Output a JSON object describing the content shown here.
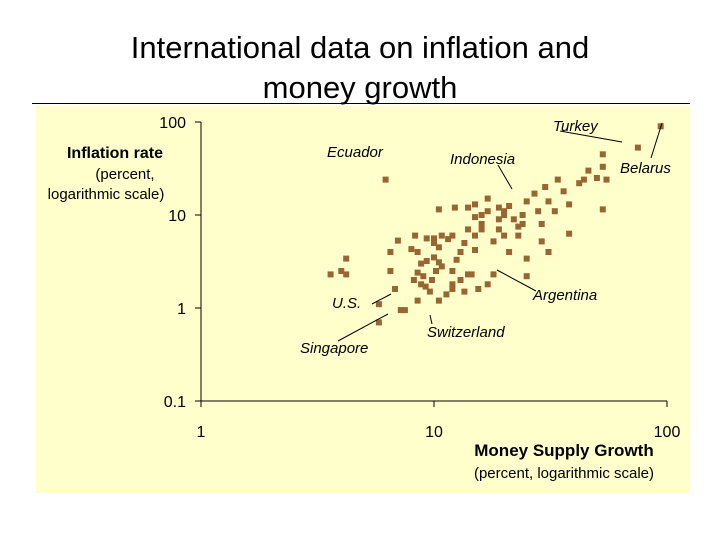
{
  "slide": {
    "title_line1": "International data on inflation and",
    "title_line2": "money growth"
  },
  "colors": {
    "panel_background": "#ffffcc",
    "marker": "#996633",
    "axis": "#000000"
  },
  "chart_data": {
    "type": "scatter",
    "xscale": "log",
    "yscale": "log",
    "xlim": [
      1,
      100
    ],
    "ylim": [
      0.1,
      100
    ],
    "x_ticks": [
      "1",
      "10",
      "100"
    ],
    "y_ticks": [
      "100",
      "10",
      "1",
      "0.1"
    ],
    "xlabel": "Money Supply Growth",
    "xlabel_sub": "(percent, logarithmic scale)",
    "ylabel": "Inflation rate",
    "ylabel_sub_line1": "(percent,",
    "ylabel_sub_line2": "logarithmic scale)",
    "grid": false,
    "points": [
      [
        94,
        90
      ],
      [
        75,
        53
      ],
      [
        53,
        45
      ],
      [
        53,
        33
      ],
      [
        46,
        30
      ],
      [
        50,
        25
      ],
      [
        55,
        24
      ],
      [
        44,
        24
      ],
      [
        42,
        22
      ],
      [
        53,
        11.5
      ],
      [
        34,
        24
      ],
      [
        30,
        20
      ],
      [
        36,
        18
      ],
      [
        38,
        13
      ],
      [
        38,
        6.3
      ],
      [
        27,
        17
      ],
      [
        25,
        14
      ],
      [
        31,
        14
      ],
      [
        33,
        11
      ],
      [
        28,
        11
      ],
      [
        29,
        8
      ],
      [
        29,
        5.2
      ],
      [
        31,
        4
      ],
      [
        24,
        10
      ],
      [
        24,
        8
      ],
      [
        23,
        6
      ],
      [
        22,
        9
      ],
      [
        21,
        12.5
      ],
      [
        20,
        11
      ],
      [
        19,
        9
      ],
      [
        19,
        7
      ],
      [
        18,
        5.2
      ],
      [
        20,
        10
      ],
      [
        17,
        11
      ],
      [
        16,
        10
      ],
      [
        15,
        9.5
      ],
      [
        14,
        12
      ],
      [
        12.3,
        12
      ],
      [
        16,
        8
      ],
      [
        14,
        7
      ],
      [
        15,
        6
      ],
      [
        13.5,
        5
      ],
      [
        12,
        6
      ],
      [
        13,
        4
      ],
      [
        11.5,
        5.5
      ],
      [
        12.5,
        3.3
      ],
      [
        12,
        2.5
      ],
      [
        13,
        2
      ],
      [
        12,
        1.8
      ],
      [
        11.3,
        1.4
      ],
      [
        10.8,
        2.8
      ],
      [
        10.5,
        3.1
      ],
      [
        10,
        3.5
      ],
      [
        10.2,
        2.5
      ],
      [
        9.8,
        2
      ],
      [
        9.6,
        1.5
      ],
      [
        9.3,
        3.2
      ],
      [
        9,
        2.2
      ],
      [
        9.2,
        1.7
      ],
      [
        8.8,
        3
      ],
      [
        8.5,
        4
      ],
      [
        8.3,
        6
      ],
      [
        8.5,
        2.4
      ],
      [
        8.2,
        2
      ],
      [
        8,
        4.3
      ],
      [
        7,
        5.3
      ],
      [
        6.5,
        4
      ],
      [
        6.5,
        2.5
      ],
      [
        10.8,
        6
      ],
      [
        10,
        5
      ],
      [
        10.5,
        4.5
      ],
      [
        10.5,
        1.2
      ],
      [
        10.5,
        11.5
      ],
      [
        10,
        5.6
      ],
      [
        9.3,
        5.6
      ],
      [
        8.8,
        1.8
      ],
      [
        8.5,
        1.2
      ],
      [
        7.5,
        0.95
      ],
      [
        6.8,
        1.6
      ],
      [
        5.8,
        1.1
      ],
      [
        5.8,
        0.7
      ],
      [
        4.2,
        3.4
      ],
      [
        3.6,
        2.3
      ],
      [
        4,
        2.5
      ],
      [
        4.2,
        2.3
      ],
      [
        7.2,
        0.95
      ],
      [
        6.2,
        24
      ],
      [
        15,
        13
      ],
      [
        17,
        15
      ],
      [
        19,
        12
      ],
      [
        23,
        7.5
      ],
      [
        25,
        3.4
      ],
      [
        25,
        2.2
      ],
      [
        15,
        4.2
      ],
      [
        16,
        7
      ],
      [
        17,
        1.8
      ],
      [
        18,
        2.3
      ],
      [
        15.5,
        1.6
      ],
      [
        14.5,
        2.3
      ],
      [
        12,
        1.6
      ],
      [
        14,
        2.3
      ],
      [
        13.5,
        1.5
      ],
      [
        20,
        6
      ],
      [
        21,
        4
      ]
    ],
    "annotations": {
      "turkey": "Turkey",
      "belarus": "Belarus",
      "ecuador": "Ecuador",
      "indonesia": "Indonesia",
      "argentina": "Argentina",
      "us": "U.S.",
      "singapore": "Singapore",
      "switzerland": "Switzerland"
    }
  }
}
